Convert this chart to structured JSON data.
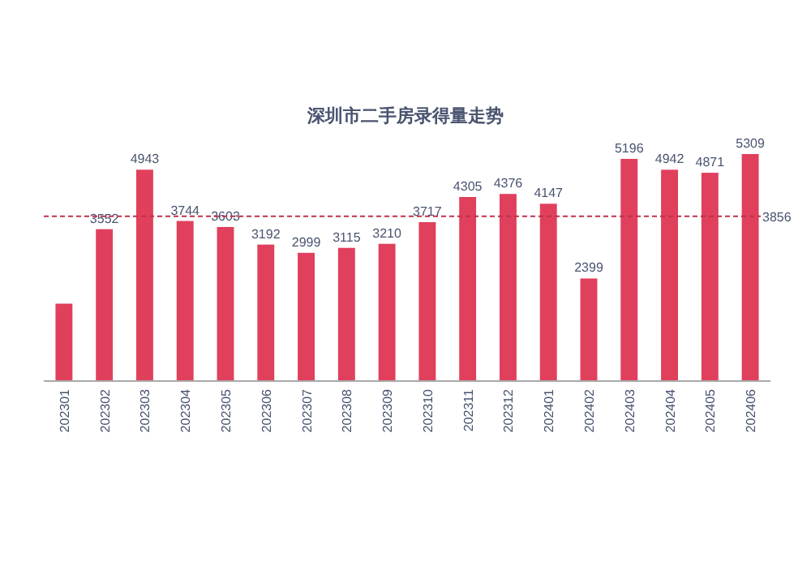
{
  "chart_data": {
    "type": "bar",
    "title": "深圳市二手房录得量走势",
    "categories": [
      "202301",
      "202302",
      "202303",
      "202304",
      "202305",
      "202306",
      "202307",
      "202308",
      "202309",
      "202310",
      "202311",
      "202312",
      "202401",
      "202402",
      "202403",
      "202404",
      "202405",
      "202406"
    ],
    "values": [
      1810,
      3552,
      4943,
      3744,
      3603,
      3192,
      2999,
      3115,
      3210,
      3717,
      4305,
      4376,
      4147,
      2399,
      5196,
      4942,
      4871,
      5309
    ],
    "value_labels": [
      null,
      "3552",
      "4943",
      "3744",
      "3603",
      "3192",
      "2999",
      "3115",
      "3210",
      "3717",
      "4305",
      "4376",
      "4147",
      "2399",
      "5196",
      "4942",
      "4871",
      "5309"
    ],
    "color": "#e0405c",
    "ref_lines": [
      {
        "axis": "y",
        "value": 3856,
        "label": "3856",
        "color": "#c0304a",
        "line_style": "dashed"
      }
    ]
  }
}
